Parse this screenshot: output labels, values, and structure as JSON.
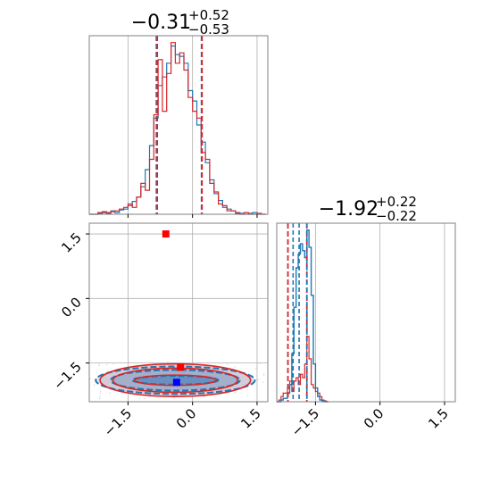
{
  "chart_data": {
    "type": "corner",
    "grid": true,
    "colors": {
      "blue": "#1f77b4",
      "red": "#d62728",
      "grid": "#b0b0b0",
      "frame": "#808080"
    },
    "parameter_ranges": [
      [
        -2.4,
        1.75
      ],
      [
        -2.4,
        1.75
      ]
    ],
    "tick_values": [
      -1.5,
      0.0,
      1.5
    ],
    "tick_labels": [
      "−1.5",
      "0.0",
      "1.5"
    ],
    "panel_titles": [
      {
        "value": "−0.31",
        "upper": "+0.52",
        "lower": "−0.53"
      },
      {
        "value": "−1.92",
        "upper": "+0.22",
        "lower": "−0.22"
      }
    ],
    "param1_histograms": {
      "bin_edges": [
        -2.4,
        -2.3,
        -2.2,
        -2.1,
        -2.0,
        -1.9,
        -1.8,
        -1.7,
        -1.6,
        -1.5,
        -1.4,
        -1.3,
        -1.2,
        -1.1,
        -1.0,
        -0.9,
        -0.8,
        -0.7,
        -0.6,
        -0.5,
        -0.4,
        -0.3,
        -0.2,
        -0.1,
        0.0,
        0.1,
        0.2,
        0.3,
        0.4,
        0.5,
        0.6,
        0.7,
        0.8,
        0.9,
        1.0,
        1.1,
        1.2,
        1.3,
        1.4,
        1.5,
        1.6,
        1.7
      ],
      "blue": [
        0.0,
        0.0,
        0.005,
        0.01,
        0.005,
        0.02,
        0.01,
        0.025,
        0.03,
        0.05,
        0.075,
        0.1,
        0.16,
        0.26,
        0.4,
        0.56,
        0.75,
        0.8,
        0.88,
        0.98,
        0.93,
        0.92,
        0.88,
        0.72,
        0.66,
        0.52,
        0.42,
        0.3,
        0.2,
        0.12,
        0.08,
        0.04,
        0.03,
        0.02,
        0.01,
        0.005,
        0.0,
        0.005,
        0.01,
        0.0,
        0.0
      ],
      "red": [
        0.0,
        0.0,
        0.01,
        0.015,
        0.01,
        0.015,
        0.02,
        0.03,
        0.04,
        0.06,
        0.04,
        0.1,
        0.18,
        0.14,
        0.32,
        0.58,
        0.9,
        0.6,
        0.82,
        1.0,
        0.88,
        0.94,
        0.84,
        0.68,
        0.6,
        0.56,
        0.36,
        0.32,
        0.18,
        0.13,
        0.06,
        0.05,
        0.02,
        0.02,
        0.005,
        0.0,
        0.01,
        0.0,
        0.0,
        0.005,
        0.0
      ],
      "quantile_lines": {
        "blue": [
          -0.84,
          -0.31,
          0.21
        ],
        "red": [
          -0.82,
          -0.31,
          0.22
        ]
      }
    },
    "param2_histograms": {
      "bin_edges": [
        -2.4,
        -2.35,
        -2.3,
        -2.25,
        -2.2,
        -2.15,
        -2.1,
        -2.05,
        -2.0,
        -1.95,
        -1.9,
        -1.85,
        -1.8,
        -1.75,
        -1.7,
        -1.65,
        -1.6,
        -1.55,
        -1.5,
        -1.45,
        -1.4,
        -1.35,
        -1.3,
        -1.25,
        -1.2
      ],
      "blue": [
        0.0,
        0.0,
        0.01,
        0.02,
        0.02,
        0.05,
        0.1,
        0.28,
        0.55,
        0.78,
        0.86,
        0.92,
        0.88,
        0.84,
        1.0,
        0.9,
        0.62,
        0.22,
        0.08,
        0.03,
        0.01,
        0.005,
        0.0,
        0.0
      ],
      "red": [
        0.0,
        0.01,
        0.03,
        0.05,
        0.05,
        0.08,
        0.12,
        0.06,
        0.12,
        0.14,
        0.1,
        0.16,
        0.14,
        0.22,
        0.38,
        0.25,
        0.1,
        0.08,
        0.06,
        0.05,
        0.03,
        0.01,
        0.005,
        0.0
      ],
      "quantile_lines": {
        "red": [
          -2.14,
          -1.92,
          -1.7
        ],
        "blue": [
          -2.02,
          -1.88,
          -1.7
        ]
      }
    },
    "joint_2d": {
      "blue_contour_center": [
        -0.4,
        -1.9
      ],
      "blue_contour_radii": [
        [
          1.0,
          0.1
        ],
        [
          1.5,
          0.24
        ],
        [
          1.85,
          0.32
        ]
      ],
      "red_contour_center": [
        -0.4,
        -1.9
      ],
      "red_contour_radii": [
        [
          0.95,
          0.12
        ],
        [
          1.45,
          0.28
        ],
        [
          1.75,
          0.38
        ]
      ],
      "markers": [
        {
          "color": "red",
          "x": -0.62,
          "y": 1.5
        },
        {
          "color": "red",
          "x": -0.28,
          "y": -1.6
        },
        {
          "color": "blue",
          "x": -0.37,
          "y": -1.95
        }
      ]
    }
  }
}
